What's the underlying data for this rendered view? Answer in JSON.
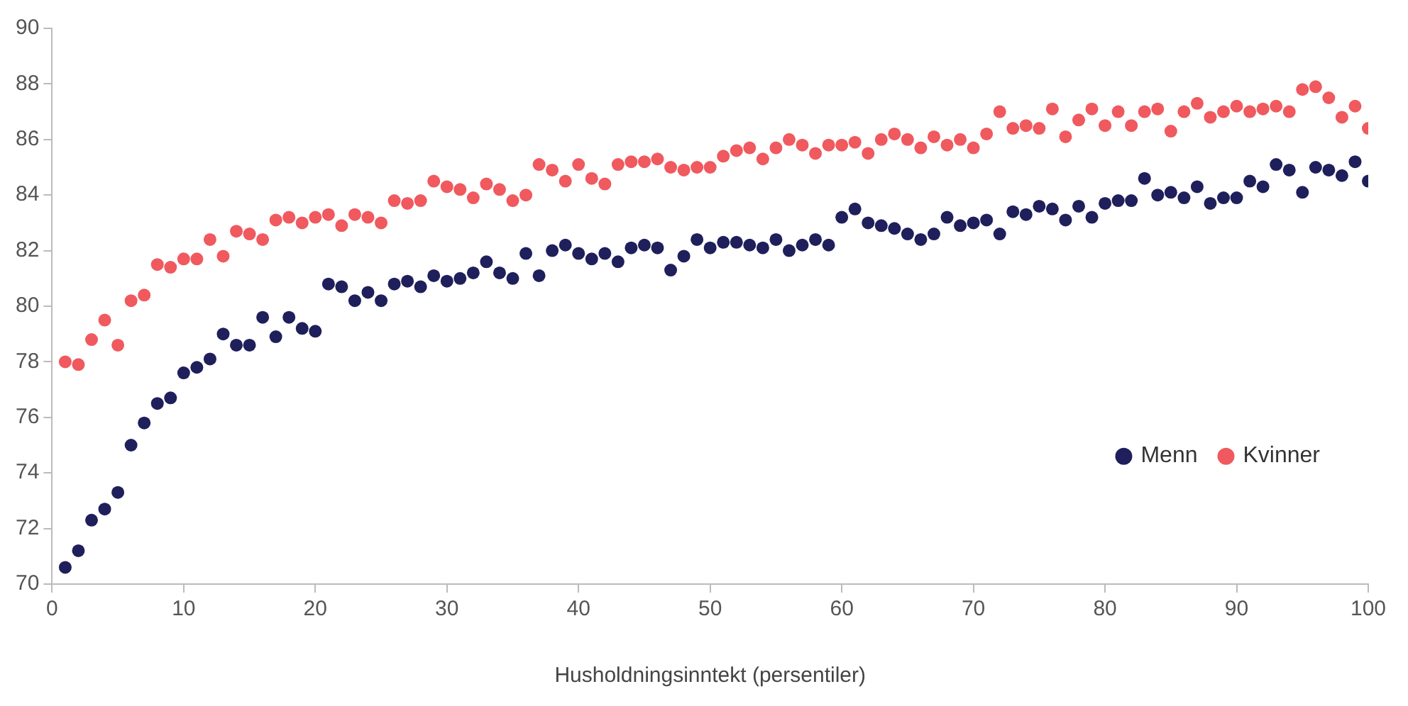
{
  "chart_data": {
    "type": "scatter",
    "xlabel": "Husholdningsinntekt (persentiler)",
    "x": [
      1,
      2,
      3,
      4,
      5,
      6,
      7,
      8,
      9,
      10,
      11,
      12,
      13,
      14,
      15,
      16,
      17,
      18,
      19,
      20,
      21,
      22,
      23,
      24,
      25,
      26,
      27,
      28,
      29,
      30,
      31,
      32,
      33,
      34,
      35,
      36,
      37,
      38,
      39,
      40,
      41,
      42,
      43,
      44,
      45,
      46,
      47,
      48,
      49,
      50,
      51,
      52,
      53,
      54,
      55,
      56,
      57,
      58,
      59,
      60,
      61,
      62,
      63,
      64,
      65,
      66,
      67,
      68,
      69,
      70,
      71,
      72,
      73,
      74,
      75,
      76,
      77,
      78,
      79,
      80,
      81,
      82,
      83,
      84,
      85,
      86,
      87,
      88,
      89,
      90,
      91,
      92,
      93,
      94,
      95,
      96,
      97,
      98,
      99,
      100
    ],
    "series": [
      {
        "name": "Menn",
        "color": "#1f1f5c",
        "values": [
          70.6,
          71.2,
          72.3,
          72.7,
          73.3,
          75.0,
          75.8,
          76.5,
          76.7,
          77.6,
          77.8,
          78.1,
          79.0,
          78.6,
          78.6,
          79.6,
          78.9,
          79.6,
          79.2,
          79.1,
          80.8,
          80.7,
          80.2,
          80.5,
          80.2,
          80.8,
          80.9,
          80.7,
          81.1,
          80.9,
          81.0,
          81.2,
          81.6,
          81.2,
          81.0,
          81.9,
          81.1,
          82.0,
          82.2,
          81.9,
          81.7,
          81.9,
          81.6,
          82.1,
          82.2,
          82.1,
          81.3,
          81.8,
          82.4,
          82.1,
          82.3,
          82.3,
          82.2,
          82.1,
          82.4,
          82.0,
          82.2,
          82.4,
          82.2,
          83.2,
          83.5,
          83.0,
          82.9,
          82.8,
          82.6,
          82.4,
          82.6,
          83.2,
          82.9,
          83.0,
          83.1,
          82.6,
          83.4,
          83.3,
          83.6,
          83.5,
          83.1,
          83.6,
          83.2,
          83.7,
          83.8,
          83.8,
          84.6,
          84.0,
          84.1,
          83.9,
          84.3,
          83.7,
          83.9,
          83.9,
          84.5,
          84.3,
          85.1,
          84.9,
          84.1,
          85.0,
          84.9,
          84.7,
          85.2,
          84.5
        ]
      },
      {
        "name": "Kvinner",
        "color": "#f0595e",
        "values": [
          78.0,
          77.9,
          78.8,
          79.5,
          78.6,
          80.2,
          80.4,
          81.5,
          81.4,
          81.7,
          81.7,
          82.4,
          81.8,
          82.7,
          82.6,
          82.4,
          83.1,
          83.2,
          83.0,
          83.2,
          83.3,
          82.9,
          83.3,
          83.2,
          83.0,
          83.8,
          83.7,
          83.8,
          84.5,
          84.3,
          84.2,
          83.9,
          84.4,
          84.2,
          83.8,
          84.0,
          85.1,
          84.9,
          84.5,
          85.1,
          84.6,
          84.4,
          85.1,
          85.2,
          85.2,
          85.3,
          85.0,
          84.9,
          85.0,
          85.0,
          85.4,
          85.6,
          85.7,
          85.3,
          85.7,
          86.0,
          85.8,
          85.5,
          85.8,
          85.8,
          85.9,
          85.5,
          86.0,
          86.2,
          86.0,
          85.7,
          86.1,
          85.8,
          86.0,
          85.7,
          86.2,
          87.0,
          86.4,
          86.5,
          86.4,
          87.1,
          86.1,
          86.7,
          87.1,
          86.5,
          87.0,
          86.5,
          87.0,
          87.1,
          86.3,
          87.0,
          87.3,
          86.8,
          87.0,
          87.2,
          87.0,
          87.1,
          87.2,
          87.0,
          87.8,
          87.9,
          87.5,
          86.8,
          87.2,
          86.4
        ]
      }
    ],
    "xlim": [
      0,
      100
    ],
    "xticks": [
      0,
      10,
      20,
      30,
      40,
      50,
      60,
      70,
      80,
      90,
      100
    ],
    "ylim": [
      70,
      90
    ],
    "yticks": [
      70,
      72,
      74,
      76,
      78,
      80,
      82,
      84,
      86,
      88,
      90
    ],
    "grid": false,
    "legend": "right",
    "marker": "circle"
  }
}
